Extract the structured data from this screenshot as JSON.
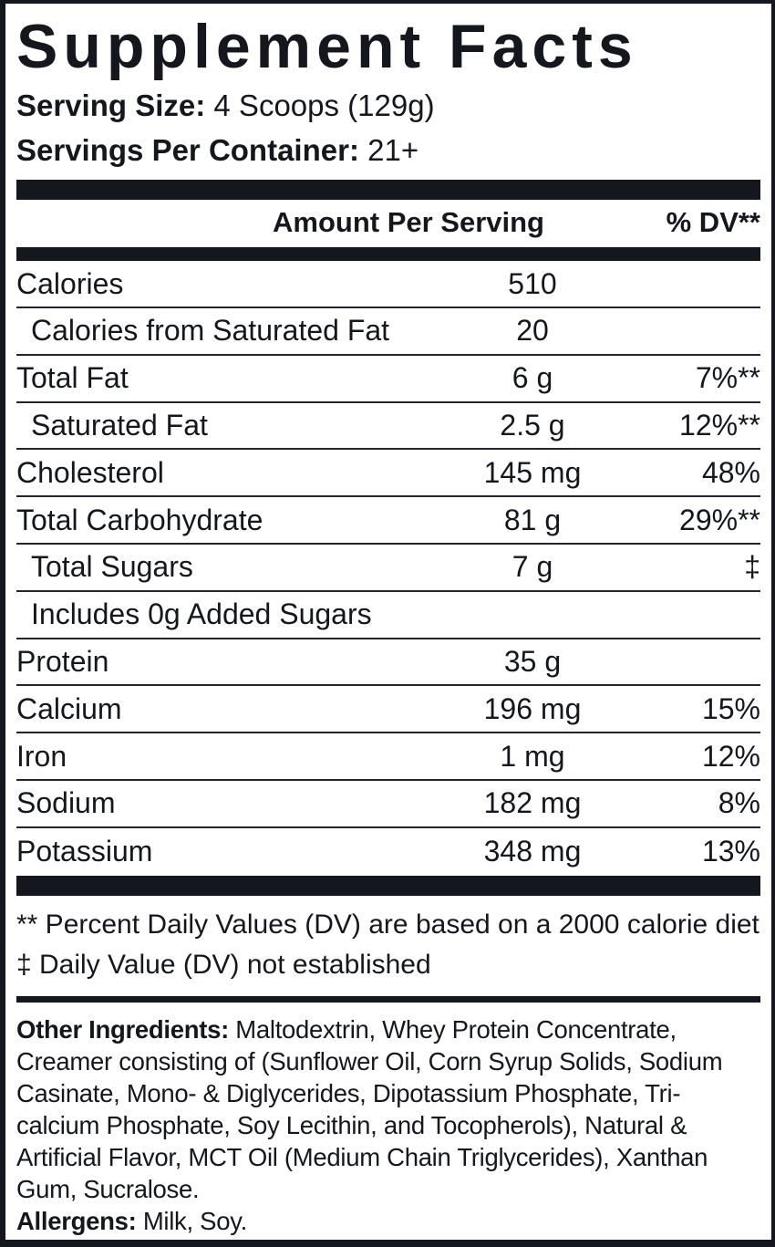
{
  "title": "Supplement Facts",
  "serving_info": {
    "serving_size_label": "Serving Size:",
    "serving_size_value": "4 Scoops (129g)",
    "servings_per_container_label": "Servings Per Container:",
    "servings_per_container_value": "21+"
  },
  "table": {
    "header": {
      "amount": "Amount Per Serving",
      "dv": "% DV**"
    },
    "rows": [
      {
        "name": "Calories",
        "amount": "510",
        "dv": "",
        "indent": false
      },
      {
        "name": "Calories from Saturated Fat",
        "amount": "20",
        "dv": "",
        "indent": true
      },
      {
        "name": "Total Fat",
        "amount": "6 g",
        "dv": "7%**",
        "indent": false
      },
      {
        "name": "Saturated Fat",
        "amount": "2.5 g",
        "dv": "12%**",
        "indent": true
      },
      {
        "name": "Cholesterol",
        "amount": "145 mg",
        "dv": "48%",
        "indent": false
      },
      {
        "name": "Total Carbohydrate",
        "amount": "81 g",
        "dv": "29%**",
        "indent": false
      },
      {
        "name": "Total Sugars",
        "amount": "7 g",
        "dv": "‡",
        "indent": true
      },
      {
        "name": "Includes 0g Added Sugars",
        "amount": "",
        "dv": "",
        "indent": true
      },
      {
        "name": "Protein",
        "amount": "35 g",
        "dv": "",
        "indent": false
      },
      {
        "name": "Calcium",
        "amount": "196 mg",
        "dv": "15%",
        "indent": false
      },
      {
        "name": "Iron",
        "amount": "1 mg",
        "dv": "12%",
        "indent": false
      },
      {
        "name": "Sodium",
        "amount": "182 mg",
        "dv": "8%",
        "indent": false
      },
      {
        "name": "Potassium",
        "amount": "348 mg",
        "dv": "13%",
        "indent": false
      }
    ]
  },
  "footnotes": [
    "** Percent Daily Values (DV) are based on a 2000 calorie diet",
    "‡ Daily Value (DV) not established"
  ],
  "other_ingredients": {
    "label": "Other Ingredients:",
    "text": " Maltodextrin, Whey Protein Concentrate, Creamer consisting of (Sunflower Oil, Corn Syrup Solids, Sodium Casinate, Mono- & Diglycerides, Dipotassium Phosphate, Tri-calcium Phosphate, Soy Lecithin, and Tocopherols), Natural & Artificial Flavor, MCT Oil (Medium Chain Triglycerides), Xanthan Gum, Sucralose."
  },
  "allergens": {
    "label": "Allergens:",
    "text": " Milk, Soy."
  },
  "colors": {
    "ink": "#14171d",
    "background": "#ffffff"
  }
}
